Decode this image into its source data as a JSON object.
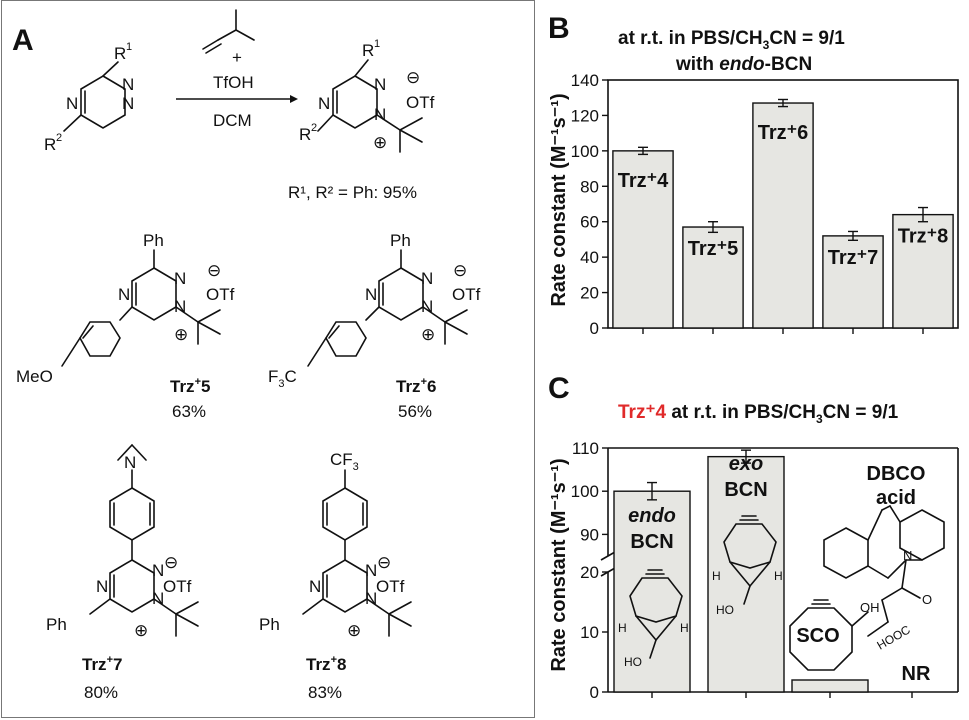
{
  "panel_a": {
    "label": "A",
    "reaction": {
      "reagent_plus": "+",
      "reagent": "TfOH",
      "solvent": "DCM",
      "yield_note": "R¹, R² = Ph: 95%"
    },
    "atom": {
      "N": "N",
      "R": "R",
      "one": "1",
      "two": "2",
      "otf": "OTf",
      "minus": "⊖",
      "plus": "⊕",
      "ph": "Ph",
      "meo": "MeO",
      "f3c": "F",
      "c": "C",
      "three": "3",
      "cf3": "CF"
    },
    "compounds": [
      {
        "name": "Trz",
        "sup": "+",
        "num": "5",
        "yield": "63%"
      },
      {
        "name": "Trz",
        "sup": "+",
        "num": "6",
        "yield": "56%"
      },
      {
        "name": "Trz",
        "sup": "+",
        "num": "7",
        "yield": "80%"
      },
      {
        "name": "Trz",
        "sup": "+",
        "num": "8",
        "yield": "83%"
      }
    ]
  },
  "chart_data": [
    {
      "panel": "B",
      "type": "bar",
      "title_line1_a": "at r.t. in PBS/CH",
      "title_line1_sub": "3",
      "title_line1_b": "CN = 9/1",
      "title_line2_a": "with ",
      "title_line2_em": "endo",
      "title_line2_b": "-BCN",
      "ylabel": "Rate constant (M⁻¹s⁻¹)",
      "ylim": [
        0,
        140
      ],
      "yticks": [
        "0",
        "20",
        "40",
        "60",
        "80",
        "100",
        "120",
        "140"
      ],
      "categories": [
        "Trz⁺4",
        "Trz⁺5",
        "Trz⁺6",
        "Trz⁺7",
        "Trz⁺8"
      ],
      "values": [
        100,
        57,
        127,
        52,
        64
      ],
      "errors": [
        2,
        3,
        2,
        2.5,
        4
      ],
      "bar_color": "#e6e6e2",
      "label_color": "#e02a2a"
    },
    {
      "panel": "C",
      "type": "bar",
      "title_red": "Trz⁺4",
      "title_a": " at r.t. in PBS/CH",
      "title_sub": "3",
      "title_b": "CN = 9/1",
      "ylabel": "Rate constant (M⁻¹s⁻¹)",
      "axis_break": true,
      "lower_ylim": [
        0,
        20
      ],
      "upper_ylim": [
        85,
        110
      ],
      "yticks_lower": [
        "0",
        "10",
        "20"
      ],
      "yticks_upper": [
        "90",
        "100",
        "110"
      ],
      "categories": [
        "endo BCN",
        "exo BCN",
        "SCO",
        "DBCO acid"
      ],
      "values": [
        100,
        108,
        2,
        0
      ],
      "errors": [
        2,
        1.5,
        0,
        0
      ],
      "bar_labels": [
        {
          "l1": "endo",
          "l2": "BCN"
        },
        {
          "l1": "exo",
          "l2": "BCN"
        },
        {
          "l1": "SCO",
          "l2": ""
        },
        {
          "l1": "DBCO",
          "l2": "acid"
        }
      ],
      "nr_label": "NR",
      "struct_text": {
        "H": "H",
        "HO": "HO",
        "OH": "OH",
        "O": "O",
        "N": "N",
        "HOOC": "HOOC"
      }
    }
  ]
}
